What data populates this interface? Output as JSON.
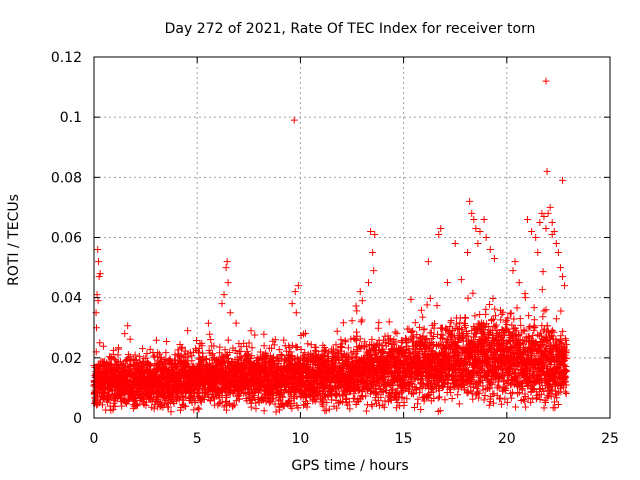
{
  "chart_data": {
    "type": "scatter",
    "title": "Day 272 of 2021, Rate Of TEC Index for receiver torn",
    "xlabel": "GPS time / hours",
    "ylabel": "ROTI / TECUs",
    "xlim": [
      0,
      25
    ],
    "ylim": [
      0,
      0.12
    ],
    "xticks": [
      0,
      5,
      10,
      15,
      20,
      25
    ],
    "xtick_labels": [
      "0",
      "5",
      "10",
      "15",
      "20",
      "25"
    ],
    "yticks": [
      0,
      0.02,
      0.04,
      0.06,
      0.08,
      0.1,
      0.12
    ],
    "ytick_labels": [
      "0",
      "0.02",
      "0.04",
      "0.06",
      "0.08",
      "0.1",
      "0.12"
    ],
    "grid": true,
    "marker": "+",
    "color": "#ff0000",
    "series": [
      {
        "name": "ROTI",
        "points": [
          [
            0.05,
            0.012
          ],
          [
            0.1,
            0.035
          ],
          [
            0.15,
            0.041
          ],
          [
            0.2,
            0.039
          ],
          [
            0.25,
            0.047
          ],
          [
            0.3,
            0.048
          ],
          [
            0.18,
            0.056
          ],
          [
            0.22,
            0.052
          ],
          [
            0.12,
            0.03
          ],
          [
            0.28,
            0.025
          ],
          [
            6.4,
            0.05
          ],
          [
            6.5,
            0.045
          ],
          [
            6.3,
            0.041
          ],
          [
            6.2,
            0.038
          ],
          [
            6.6,
            0.035
          ],
          [
            6.45,
            0.052
          ],
          [
            9.7,
            0.099
          ],
          [
            9.75,
            0.042
          ],
          [
            9.6,
            0.038
          ],
          [
            9.9,
            0.044
          ],
          [
            9.8,
            0.035
          ],
          [
            13.4,
            0.062
          ],
          [
            13.5,
            0.055
          ],
          [
            13.55,
            0.049
          ],
          [
            13.3,
            0.045
          ],
          [
            13.6,
            0.061
          ],
          [
            12.9,
            0.042
          ],
          [
            13.0,
            0.039
          ],
          [
            16.8,
            0.063
          ],
          [
            16.7,
            0.061
          ],
          [
            16.2,
            0.052
          ],
          [
            17.5,
            0.058
          ],
          [
            17.8,
            0.046
          ],
          [
            18.2,
            0.072
          ],
          [
            18.3,
            0.068
          ],
          [
            18.4,
            0.066
          ],
          [
            18.5,
            0.063
          ],
          [
            18.7,
            0.062
          ],
          [
            18.9,
            0.066
          ],
          [
            19.0,
            0.06
          ],
          [
            19.2,
            0.056
          ],
          [
            18.6,
            0.058
          ],
          [
            18.1,
            0.055
          ],
          [
            19.4,
            0.053
          ],
          [
            20.4,
            0.052
          ],
          [
            20.3,
            0.049
          ],
          [
            20.6,
            0.045
          ],
          [
            20.9,
            0.04
          ],
          [
            21.0,
            0.066
          ],
          [
            21.2,
            0.062
          ],
          [
            21.4,
            0.06
          ],
          [
            21.6,
            0.065
          ],
          [
            21.7,
            0.068
          ],
          [
            21.8,
            0.067
          ],
          [
            21.9,
            0.063
          ],
          [
            22.0,
            0.068
          ],
          [
            22.1,
            0.07
          ],
          [
            22.2,
            0.065
          ],
          [
            22.3,
            0.062
          ],
          [
            22.4,
            0.058
          ],
          [
            22.5,
            0.055
          ],
          [
            22.6,
            0.05
          ],
          [
            22.7,
            0.047
          ],
          [
            22.8,
            0.044
          ],
          [
            21.9,
            0.112
          ],
          [
            21.95,
            0.082
          ],
          [
            22.7,
            0.079
          ],
          [
            22.2,
            0.061
          ],
          [
            21.5,
            0.055
          ]
        ]
      }
    ],
    "dense_band": {
      "x_start": 0,
      "x_end": 22.9,
      "x_step": 0.012,
      "per_step": 3,
      "baseline": [
        [
          0,
          0.012
        ],
        [
          3,
          0.012
        ],
        [
          6,
          0.013
        ],
        [
          9,
          0.013
        ],
        [
          12,
          0.014
        ],
        [
          15,
          0.016
        ],
        [
          17,
          0.018
        ],
        [
          19,
          0.02
        ],
        [
          21,
          0.018
        ],
        [
          22.9,
          0.017
        ]
      ],
      "spread": [
        [
          0,
          0.009
        ],
        [
          6,
          0.01
        ],
        [
          12,
          0.011
        ],
        [
          16,
          0.013
        ],
        [
          19,
          0.016
        ],
        [
          22.9,
          0.014
        ]
      ]
    }
  }
}
